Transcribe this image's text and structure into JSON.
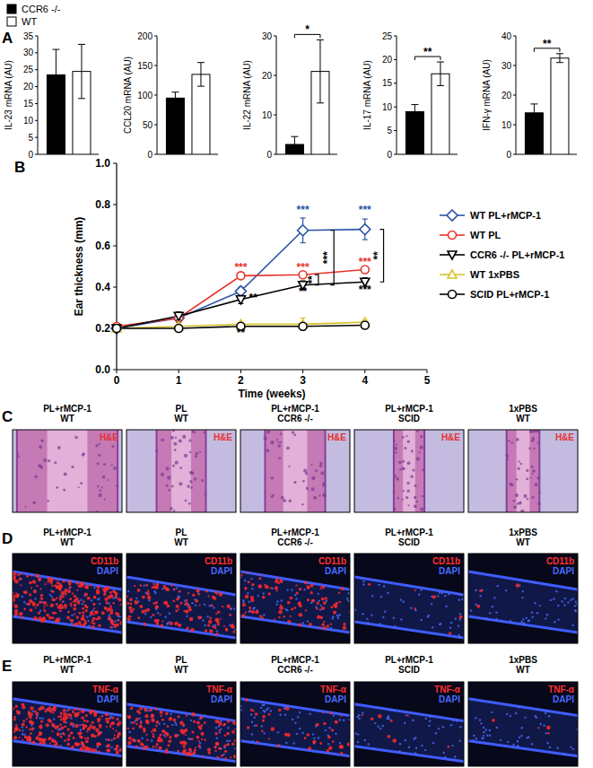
{
  "panel_labels": [
    "A",
    "B",
    "C",
    "D",
    "E"
  ],
  "legend": [
    {
      "name": "CCR6 -/-",
      "color": "#000000"
    },
    {
      "name": "WT",
      "color": "#ffffff"
    }
  ],
  "chart_data": [
    {
      "type": "bar",
      "y_label": "IL-23 mRNA (AU)",
      "categories": [
        null,
        null
      ],
      "values": [
        23.5,
        24.5
      ],
      "errors": [
        7.5,
        8
      ],
      "colors": [
        "#000000",
        "#ffffff"
      ],
      "ylim": [
        0,
        35
      ],
      "yticks": [
        0,
        5,
        10,
        15,
        20,
        25,
        30,
        35
      ],
      "tick_labels": "y"
    },
    {
      "type": "bar",
      "y_label": "CCL20 mRNA (AU)",
      "categories": [
        null,
        null
      ],
      "values": [
        95,
        135
      ],
      "errors": [
        10,
        20
      ],
      "colors": [
        "#000000",
        "#ffffff"
      ],
      "ylim": [
        0,
        200
      ],
      "yticks": [
        0,
        50,
        100,
        150,
        200
      ],
      "tick_labels": "y"
    },
    {
      "type": "bar",
      "y_label": "IL-22 mRNA (AU)",
      "categories": [
        null,
        null
      ],
      "values": [
        2.5,
        21
      ],
      "errors": [
        2,
        8
      ],
      "colors": [
        "#000000",
        "#ffffff"
      ],
      "ylim": [
        0,
        30
      ],
      "yticks": [
        0,
        10,
        20,
        30
      ],
      "tick_labels": "y",
      "annotations": [
        {
          "text": "*"
        }
      ]
    },
    {
      "type": "bar",
      "y_label": "IL-17 mRNA (AU)",
      "categories": [
        null,
        null
      ],
      "values": [
        9,
        17
      ],
      "errors": [
        1.5,
        2.5
      ],
      "colors": [
        "#000000",
        "#ffffff"
      ],
      "ylim": [
        0,
        25
      ],
      "yticks": [
        0,
        5,
        10,
        15,
        20,
        25
      ],
      "tick_labels": "y",
      "annotations": [
        {
          "text": "**"
        }
      ]
    },
    {
      "type": "bar",
      "y_label": "IFN-γ mRNA (AU)",
      "categories": [
        null,
        null
      ],
      "values": [
        14,
        32.5
      ],
      "errors": [
        3,
        1.5
      ],
      "colors": [
        "#000000",
        "#ffffff"
      ],
      "ylim": [
        0,
        40
      ],
      "yticks": [
        0,
        10,
        20,
        30,
        40
      ],
      "tick_labels": "y",
      "annotations": [
        {
          "text": "**"
        }
      ]
    },
    {
      "type": "line",
      "x_label": "Time (weeks)",
      "y_label": "Ear thickness (mm)",
      "x": [
        0,
        1,
        2,
        3,
        4
      ],
      "xlim": [
        0,
        5
      ],
      "xticks": [
        0,
        1,
        2,
        3,
        4,
        5
      ],
      "ylim": [
        0,
        1
      ],
      "yticks": [
        {
          "value": 0,
          "label": "0.0"
        },
        {
          "value": 0.2,
          "label": "0.2"
        },
        {
          "value": 0.4,
          "label": "0.4"
        },
        {
          "value": 0.6,
          "label": "0.6"
        },
        {
          "value": 0.8,
          "label": "0.8"
        },
        {
          "value": 1,
          "label": "1.0"
        }
      ],
      "legend": "right",
      "series": [
        {
          "name": "WT PL+rMCP-1",
          "color": "#2e55a8",
          "marker": "diamond",
          "values": [
            0.2,
            0.25,
            0.38,
            0.675,
            0.68
          ],
          "errors": [
            0.01,
            0.02,
            0.02,
            0.06,
            0.05
          ]
        },
        {
          "name": "WT PL",
          "color": "#e8332a",
          "marker": "circle",
          "values": [
            0.21,
            0.25,
            0.455,
            0.46,
            0.485
          ],
          "errors": [
            0.01,
            0.01,
            0.01,
            0.01,
            0.01
          ]
        },
        {
          "name": "CCR6 -/- PL+rMCP-1",
          "color": "#000000",
          "marker": "triangle-down",
          "values": [
            0.2,
            0.26,
            0.34,
            0.41,
            0.425
          ],
          "errors": [
            0.01,
            0.02,
            0.02,
            0.02,
            0.02
          ]
        },
        {
          "name": "WT 1xPBS",
          "color": "#d6c32b",
          "marker": "triangle-up",
          "values": [
            0.2,
            0.21,
            0.22,
            0.22,
            0.23
          ],
          "errors": [
            0.01,
            0.01,
            0.01,
            0.03,
            0.01
          ]
        },
        {
          "name": "SCID PL+rMCP-1",
          "color": "#000000",
          "marker": "circle",
          "values": [
            0.2,
            0.2,
            0.21,
            0.21,
            0.215
          ],
          "errors": [
            0.01,
            0.01,
            0.01,
            0.01,
            0.01
          ]
        }
      ],
      "annotations": [
        {
          "text": "***",
          "x": 3,
          "y": 0.755,
          "color": "#2e55a8"
        },
        {
          "text": "***",
          "x": 4,
          "y": 0.755,
          "color": "#2e55a8"
        },
        {
          "text": "***",
          "x": 2,
          "y": 0.48,
          "color": "#e8332a"
        },
        {
          "text": "***",
          "x": 3,
          "y": 0.48,
          "color": "#e8332a"
        },
        {
          "text": "***",
          "x": 4,
          "y": 0.505,
          "color": "#e8332a"
        },
        {
          "text": "**",
          "x": 2.2,
          "y": 0.33,
          "color": "#000000"
        },
        {
          "text": "**",
          "x": 3,
          "y": 0.36,
          "color": "#000000"
        },
        {
          "text": "**",
          "x": 2,
          "y": 0.16,
          "color": "#000000"
        },
        {
          "text": "***",
          "x": 4,
          "y": 0.37,
          "color": "#000000"
        },
        {
          "text": "**",
          "x": 3.25,
          "y1": 0.46,
          "y2": 0.41,
          "color": "#000000"
        },
        {
          "text": "***",
          "x": 3.5,
          "y1": 0.675,
          "y2": 0.41,
          "color": "#000000"
        },
        {
          "text": "**",
          "x": 4.3,
          "y1": 0.68,
          "y2": 0.425,
          "color": "#000000"
        }
      ]
    }
  ],
  "image_panels": [
    {
      "columns": [
        {
          "title": [
            "PL+rMCP-1",
            "WT"
          ],
          "stains": [
            {
              "text": "H&E",
              "color": "#e83030"
            }
          ]
        },
        {
          "title": [
            "PL",
            "WT"
          ],
          "stains": [
            {
              "text": "H&E",
              "color": "#e83030"
            }
          ]
        },
        {
          "title": [
            "PL+rMCP-1",
            "CCR6 -/-"
          ],
          "stains": [
            {
              "text": "H&E",
              "color": "#e83030"
            }
          ]
        },
        {
          "title": [
            "PL+rMCP-1",
            "SCID"
          ],
          "stains": [
            {
              "text": "H&E",
              "color": "#e83030"
            }
          ]
        },
        {
          "title": [
            "1xPBS",
            "WT"
          ],
          "stains": [
            {
              "text": "H&E",
              "color": "#e83030"
            }
          ]
        }
      ]
    },
    {
      "columns": [
        {
          "title": [
            "PL+rMCP-1",
            "WT"
          ],
          "stains": [
            {
              "text": "CD11b",
              "color": "#ff3030"
            },
            {
              "text": "DAPI",
              "color": "#4a6bff"
            }
          ]
        },
        {
          "title": [
            "PL",
            "WT"
          ],
          "stains": [
            {
              "text": "CD11b",
              "color": "#ff3030"
            },
            {
              "text": "DAPI",
              "color": "#4a6bff"
            }
          ]
        },
        {
          "title": [
            "PL+rMCP-1",
            "CCR6 -/-"
          ],
          "stains": [
            {
              "text": "CD11b",
              "color": "#ff3030"
            },
            {
              "text": "DAPI",
              "color": "#4a6bff"
            }
          ]
        },
        {
          "title": [
            "PL+rMCP-1",
            "SCID"
          ],
          "stains": [
            {
              "text": "CD11b",
              "color": "#ff3030"
            },
            {
              "text": "DAPI",
              "color": "#4a6bff"
            }
          ]
        },
        {
          "title": [
            "1xPBS",
            "WT"
          ],
          "stains": [
            {
              "text": "CD11b",
              "color": "#ff3030"
            },
            {
              "text": "DAPI",
              "color": "#4a6bff"
            }
          ]
        }
      ]
    },
    {
      "columns": [
        {
          "title": [
            "PL+rMCP-1",
            "WT"
          ],
          "stains": [
            {
              "text": "TNF-α",
              "color": "#ff3030"
            },
            {
              "text": "DAPI",
              "color": "#4a6bff"
            }
          ]
        },
        {
          "title": [
            "PL",
            "WT"
          ],
          "stains": [
            {
              "text": "TNF-α",
              "color": "#ff3030"
            },
            {
              "text": "DAPI",
              "color": "#4a6bff"
            }
          ]
        },
        {
          "title": [
            "PL+rMCP-1",
            "CCR6 -/-"
          ],
          "stains": [
            {
              "text": "TNF-α",
              "color": "#ff3030"
            },
            {
              "text": "DAPI",
              "color": "#4a6bff"
            }
          ]
        },
        {
          "title": [
            "PL+rMCP-1",
            "SCID"
          ],
          "stains": [
            {
              "text": "TNF-α",
              "color": "#ff3030"
            },
            {
              "text": "DAPI",
              "color": "#4a6bff"
            }
          ]
        },
        {
          "title": [
            "1xPBS",
            "WT"
          ],
          "stains": [
            {
              "text": "TNF-α",
              "color": "#ff3030"
            },
            {
              "text": "DAPI",
              "color": "#4a6bff"
            }
          ]
        }
      ]
    }
  ]
}
